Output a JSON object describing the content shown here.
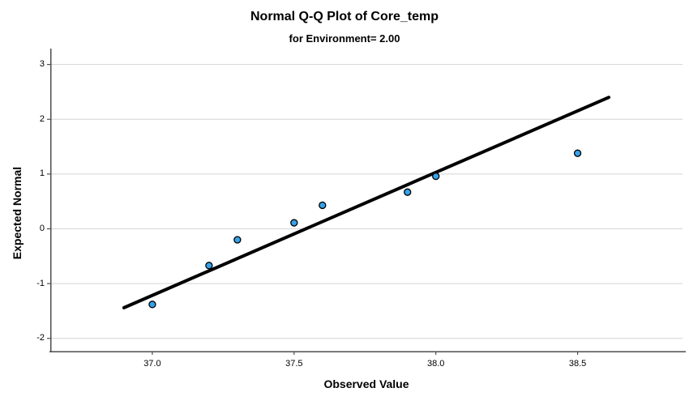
{
  "title": "Normal Q-Q Plot of Core_temp",
  "subtitle": "for Environment= 2.00",
  "chart_data": {
    "type": "scatter",
    "title": "Normal Q-Q Plot of Core_temp",
    "subtitle": "for Environment= 2.00",
    "xlabel": "Observed Value",
    "ylabel": "Expected Normal",
    "xlim": [
      36.64,
      38.87
    ],
    "ylim": [
      -2.24,
      3.29
    ],
    "x_ticks": [
      37.0,
      37.5,
      38.0,
      38.5
    ],
    "x_tick_labels": [
      "37.0",
      "37.5",
      "38.0",
      "38.5"
    ],
    "y_ticks": [
      3,
      2,
      1,
      0,
      -1,
      -2
    ],
    "y_tick_labels": [
      "3",
      "2",
      "1",
      "0",
      "-1",
      "-2"
    ],
    "grid": "horizontal-only",
    "legend": "none",
    "points": [
      {
        "x": 37.0,
        "y": -1.38
      },
      {
        "x": 37.2,
        "y": -0.67
      },
      {
        "x": 37.3,
        "y": -0.2
      },
      {
        "x": 37.5,
        "y": 0.11
      },
      {
        "x": 37.6,
        "y": 0.43
      },
      {
        "x": 37.9,
        "y": 0.67
      },
      {
        "x": 38.0,
        "y": 0.96
      },
      {
        "x": 38.5,
        "y": 1.38
      }
    ],
    "fit_line": {
      "x1": 36.9,
      "y1": -1.44,
      "x2": 38.61,
      "y2": 2.4
    },
    "colors": {
      "point_fill": "#35a2ea",
      "point_stroke": "#000000",
      "fit_line": "#000000",
      "gridline": "#d4d4d4",
      "axis": "#4d4d4d",
      "text": "#000000"
    }
  }
}
